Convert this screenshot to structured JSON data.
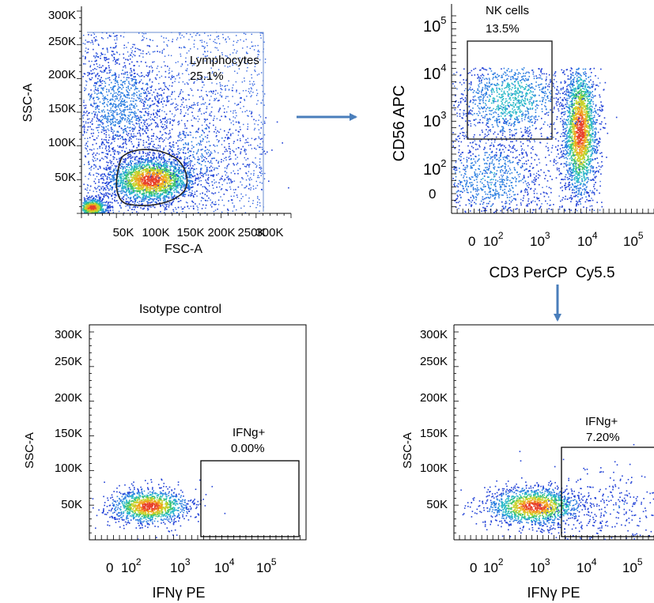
{
  "arrow_color": "#4a7ebb",
  "chart_data": [
    {
      "type": "scatter",
      "panel": "fsc-ssc",
      "title": "",
      "xlabel": "FSC-A",
      "ylabel": "SSC-A",
      "x_scale": "linear",
      "y_scale": "linear",
      "xlim": [
        0,
        300000
      ],
      "ylim": [
        0,
        300000
      ],
      "x_ticks": [
        "50K",
        "100K",
        "150K",
        "200K",
        "250K",
        "300K"
      ],
      "y_ticks": [
        "50K",
        "100K",
        "150K",
        "200K",
        "250K",
        "300K"
      ],
      "gate": {
        "name": "Lymphocytes",
        "percent": "25.1%",
        "shape": "polygon"
      },
      "populations": [
        {
          "x": 95000,
          "y": 40000,
          "sd_x": 30000,
          "sd_y": 15000,
          "density": "high"
        },
        {
          "x": 10000,
          "y": 8000,
          "sd_x": 8000,
          "sd_y": 6000,
          "density": "high"
        },
        {
          "x": 70000,
          "y": 190000,
          "sd_x": 40000,
          "sd_y": 40000,
          "density": "low"
        }
      ]
    },
    {
      "type": "scatter",
      "panel": "cd3-cd56",
      "title": "",
      "xlabel": "CD3 PerCP  Cy5.5",
      "ylabel": "CD56 APC",
      "x_scale": "biexponential",
      "y_scale": "biexponential",
      "x_ticks": [
        {
          "base": "0",
          "exp": ""
        },
        {
          "base": "10",
          "exp": "2"
        },
        {
          "base": "10",
          "exp": "3"
        },
        {
          "base": "10",
          "exp": "4"
        },
        {
          "base": "10",
          "exp": "5"
        }
      ],
      "y_ticks": [
        {
          "base": "0",
          "exp": ""
        },
        {
          "base": "10",
          "exp": "2"
        },
        {
          "base": "10",
          "exp": "3"
        },
        {
          "base": "10",
          "exp": "4"
        },
        {
          "base": "10",
          "exp": "5"
        }
      ],
      "gate": {
        "name": "NK cells",
        "percent": "13.5%",
        "shape": "rectangle"
      },
      "populations": [
        {
          "x": 7000,
          "y": 800,
          "description": "CD3+ T cells",
          "density": "high"
        },
        {
          "x": 200,
          "y": 2500,
          "description": "CD3- CD56+ NK cells",
          "density": "medium"
        },
        {
          "x": 200,
          "y": 60,
          "description": "CD3- CD56- cells",
          "density": "low"
        }
      ]
    },
    {
      "type": "scatter",
      "panel": "isotype",
      "title": "Isotype control",
      "xlabel": "IFNγ PE",
      "ylabel": "SSC-A",
      "x_scale": "biexponential",
      "y_scale": "linear",
      "ylim": [
        0,
        320000
      ],
      "x_ticks": [
        {
          "base": "0",
          "exp": ""
        },
        {
          "base": "10",
          "exp": "2"
        },
        {
          "base": "10",
          "exp": "3"
        },
        {
          "base": "10",
          "exp": "4"
        },
        {
          "base": "10",
          "exp": "5"
        }
      ],
      "y_ticks": [
        "50K",
        "100K",
        "150K",
        "200K",
        "250K",
        "300K"
      ],
      "gate": {
        "name": "IFNg+",
        "percent": "0.00%",
        "shape": "rectangle"
      },
      "populations": [
        {
          "x": 200,
          "y": 45000,
          "density": "high"
        }
      ]
    },
    {
      "type": "scatter",
      "panel": "stimulated",
      "title": "",
      "xlabel": "IFNγ PE",
      "ylabel": "SSC-A",
      "x_scale": "biexponential",
      "y_scale": "linear",
      "ylim": [
        0,
        320000
      ],
      "x_ticks": [
        {
          "base": "0",
          "exp": ""
        },
        {
          "base": "10",
          "exp": "2"
        },
        {
          "base": "10",
          "exp": "3"
        },
        {
          "base": "10",
          "exp": "4"
        },
        {
          "base": "10",
          "exp": "5"
        }
      ],
      "y_ticks": [
        "50K",
        "100K",
        "150K",
        "200K",
        "250K",
        "300K"
      ],
      "gate": {
        "name": "IFNg+",
        "percent": "7.20%",
        "shape": "rectangle"
      },
      "populations": [
        {
          "x": 500,
          "y": 45000,
          "density": "high"
        },
        {
          "x": 20000,
          "y": 45000,
          "density": "low"
        }
      ]
    }
  ]
}
